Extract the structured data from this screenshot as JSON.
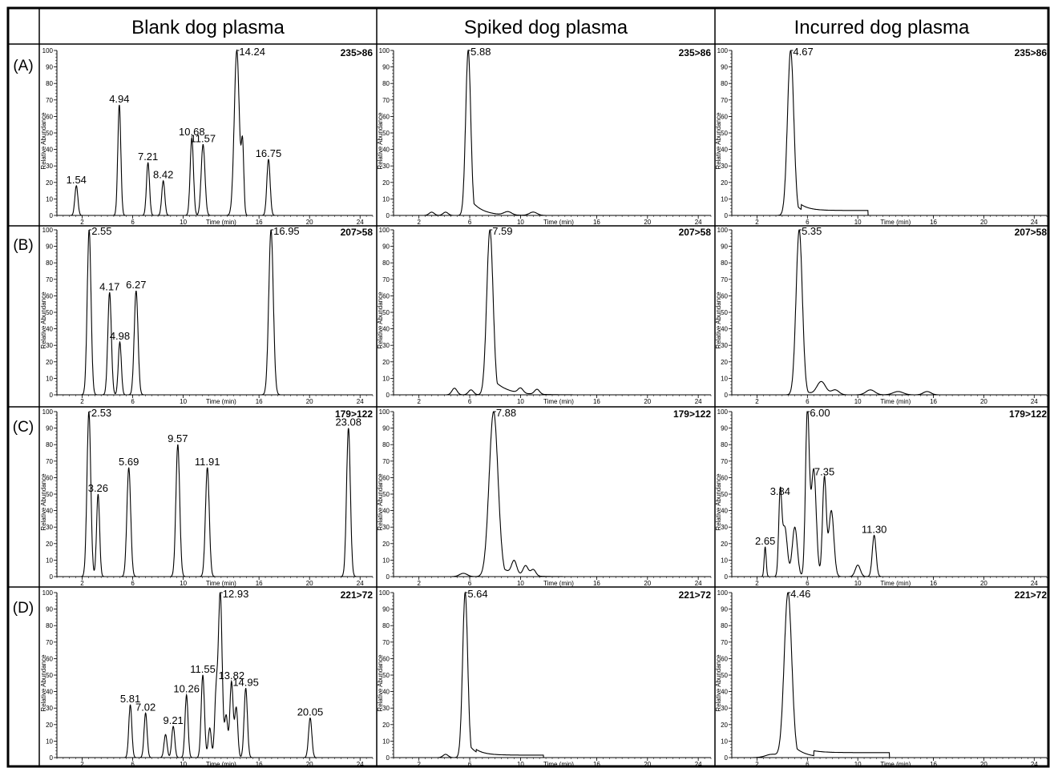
{
  "chart_data": {
    "type": "line",
    "columns": [
      "Blank dog plasma",
      "Spiked dog plasma",
      "Incurred dog plasma"
    ],
    "row_labels": [
      "(A)",
      "(B)",
      "(C)",
      "(D)"
    ],
    "xlabel": "Time (min)",
    "ylabel": "Relative Abundance",
    "xlim": [
      0,
      25
    ],
    "ylim": [
      0,
      100
    ],
    "x_ticks": [
      2,
      6,
      10,
      16,
      20,
      24
    ],
    "y_ticks": [
      0,
      10,
      20,
      30,
      40,
      50,
      60,
      70,
      80,
      90,
      100
    ],
    "panels": [
      {
        "id": "A-blank",
        "row": 0,
        "col": 0,
        "transition": "235>86",
        "peaks": [
          {
            "t": 1.54,
            "h": 18,
            "w": 0.12
          },
          {
            "t": 4.94,
            "h": 67,
            "w": 0.12
          },
          {
            "t": 7.21,
            "h": 32,
            "w": 0.12
          },
          {
            "t": 8.42,
            "h": 21,
            "w": 0.12
          },
          {
            "t": 10.68,
            "h": 47,
            "w": 0.13
          },
          {
            "t": 11.57,
            "h": 43,
            "w": 0.15
          },
          {
            "t": 14.24,
            "h": 100,
            "w": 0.2
          },
          {
            "t": 14.7,
            "h": 40,
            "w": 0.1
          },
          {
            "t": 16.75,
            "h": 34,
            "w": 0.13
          }
        ],
        "labels": [
          {
            "text": "1.54",
            "t": 1.54,
            "h": 18
          },
          {
            "text": "4.94",
            "t": 4.94,
            "h": 67
          },
          {
            "text": "7.21",
            "t": 7.21,
            "h": 32
          },
          {
            "text": "8.42",
            "t": 8.42,
            "h": 21
          },
          {
            "text": "10.68",
            "t": 10.68,
            "h": 47
          },
          {
            "text": "11.57",
            "t": 11.57,
            "h": 43
          },
          {
            "text": "14.24",
            "t": 14.24,
            "h": 100
          },
          {
            "text": "16.75",
            "t": 16.75,
            "h": 34
          }
        ]
      },
      {
        "id": "A-spiked",
        "row": 0,
        "col": 1,
        "transition": "235>86",
        "peaks": [
          {
            "t": 5.88,
            "h": 100,
            "w": 0.2,
            "tail": 2.5
          },
          {
            "t": 3.0,
            "h": 2,
            "w": 0.2
          },
          {
            "t": 4.1,
            "h": 2,
            "w": 0.2
          },
          {
            "t": 9.0,
            "h": 2,
            "w": 0.3
          },
          {
            "t": 11.0,
            "h": 2,
            "w": 0.3
          }
        ],
        "labels": [
          {
            "text": "5.88",
            "t": 5.88,
            "h": 100
          }
        ]
      },
      {
        "id": "A-incurred",
        "row": 0,
        "col": 2,
        "transition": "235>86",
        "peaks": [
          {
            "t": 4.67,
            "h": 100,
            "w": 0.25,
            "tail": 2.0
          }
        ],
        "plateau": {
          "start": 5.5,
          "end": 10.8,
          "h": 3
        },
        "labels": [
          {
            "text": "4.67",
            "t": 4.67,
            "h": 100
          }
        ]
      },
      {
        "id": "B-blank",
        "row": 1,
        "col": 0,
        "transition": "207>58",
        "peaks": [
          {
            "t": 2.55,
            "h": 100,
            "w": 0.15
          },
          {
            "t": 4.17,
            "h": 62,
            "w": 0.14
          },
          {
            "t": 4.98,
            "h": 32,
            "w": 0.12
          },
          {
            "t": 6.27,
            "h": 63,
            "w": 0.15
          },
          {
            "t": 16.95,
            "h": 100,
            "w": 0.18
          }
        ],
        "labels": [
          {
            "text": "2.55",
            "t": 2.55,
            "h": 100
          },
          {
            "text": "4.17",
            "t": 4.17,
            "h": 62
          },
          {
            "text": "4.98",
            "t": 4.98,
            "h": 32
          },
          {
            "text": "6.27",
            "t": 6.27,
            "h": 63
          },
          {
            "text": "16.95",
            "t": 16.95,
            "h": 100
          }
        ]
      },
      {
        "id": "B-spiked",
        "row": 1,
        "col": 1,
        "transition": "207>58",
        "peaks": [
          {
            "t": 7.59,
            "h": 100,
            "w": 0.25,
            "tail": 3.0
          },
          {
            "t": 4.8,
            "h": 4,
            "w": 0.2
          },
          {
            "t": 6.1,
            "h": 3,
            "w": 0.2
          },
          {
            "t": 10.0,
            "h": 3,
            "w": 0.2
          },
          {
            "t": 11.3,
            "h": 3,
            "w": 0.2
          }
        ],
        "labels": [
          {
            "text": "7.59",
            "t": 7.59,
            "h": 100
          }
        ]
      },
      {
        "id": "B-incurred",
        "row": 1,
        "col": 2,
        "transition": "207>58",
        "peaks": [
          {
            "t": 5.35,
            "h": 100,
            "w": 0.25,
            "tail": 1.0
          },
          {
            "t": 7.1,
            "h": 8,
            "w": 0.35
          },
          {
            "t": 8.2,
            "h": 3,
            "w": 0.3
          },
          {
            "t": 11.0,
            "h": 3,
            "w": 0.35
          },
          {
            "t": 13.2,
            "h": 2,
            "w": 0.4
          },
          {
            "t": 15.5,
            "h": 2,
            "w": 0.3
          }
        ],
        "labels": [
          {
            "text": "5.35",
            "t": 5.35,
            "h": 100
          }
        ]
      },
      {
        "id": "C-blank",
        "row": 2,
        "col": 0,
        "transition": "179>122",
        "peaks": [
          {
            "t": 2.53,
            "h": 100,
            "w": 0.15
          },
          {
            "t": 3.26,
            "h": 50,
            "w": 0.12
          },
          {
            "t": 5.69,
            "h": 66,
            "w": 0.15
          },
          {
            "t": 9.57,
            "h": 80,
            "w": 0.15
          },
          {
            "t": 11.91,
            "h": 66,
            "w": 0.15
          },
          {
            "t": 23.08,
            "h": 90,
            "w": 0.15
          }
        ],
        "labels": [
          {
            "text": "2.53",
            "t": 2.53,
            "h": 100
          },
          {
            "text": "3.26",
            "t": 3.26,
            "h": 50
          },
          {
            "text": "5.69",
            "t": 5.69,
            "h": 66
          },
          {
            "text": "9.57",
            "t": 9.57,
            "h": 80
          },
          {
            "text": "11.91",
            "t": 11.91,
            "h": 66
          },
          {
            "text": "23.08",
            "t": 23.08,
            "h": 90
          }
        ]
      },
      {
        "id": "C-spiked",
        "row": 2,
        "col": 1,
        "transition": "179>122",
        "peaks": [
          {
            "t": 7.88,
            "h": 100,
            "w": 0.35,
            "tail": 2.5
          },
          {
            "t": 9.5,
            "h": 8,
            "w": 0.2
          },
          {
            "t": 10.4,
            "h": 6,
            "w": 0.2
          },
          {
            "t": 11.0,
            "h": 4,
            "w": 0.2
          },
          {
            "t": 5.5,
            "h": 2,
            "w": 0.3
          }
        ],
        "labels": [
          {
            "text": "7.88",
            "t": 7.88,
            "h": 100
          }
        ]
      },
      {
        "id": "C-incurred",
        "row": 2,
        "col": 2,
        "transition": "179>122",
        "peaks": [
          {
            "t": 2.65,
            "h": 18,
            "w": 0.08
          },
          {
            "t": 3.84,
            "h": 48,
            "w": 0.12
          },
          {
            "t": 4.2,
            "h": 30,
            "w": 0.2
          },
          {
            "t": 5.0,
            "h": 30,
            "w": 0.2
          },
          {
            "t": 6.0,
            "h": 100,
            "w": 0.15
          },
          {
            "t": 6.5,
            "h": 65,
            "w": 0.2
          },
          {
            "t": 7.35,
            "h": 60,
            "w": 0.15
          },
          {
            "t": 7.9,
            "h": 40,
            "w": 0.2
          },
          {
            "t": 10.0,
            "h": 7,
            "w": 0.2
          },
          {
            "t": 11.3,
            "h": 25,
            "w": 0.15
          }
        ],
        "labels": [
          {
            "text": "2.65",
            "t": 2.65,
            "h": 18
          },
          {
            "text": "3.84",
            "t": 3.84,
            "h": 48
          },
          {
            "text": "6.00",
            "t": 6.0,
            "h": 100
          },
          {
            "text": "7.35",
            "t": 7.35,
            "h": 60
          },
          {
            "text": "11.30",
            "t": 11.3,
            "h": 25
          }
        ]
      },
      {
        "id": "D-blank",
        "row": 3,
        "col": 0,
        "transition": "221>72",
        "peaks": [
          {
            "t": 5.81,
            "h": 32,
            "w": 0.12
          },
          {
            "t": 7.02,
            "h": 27,
            "w": 0.12
          },
          {
            "t": 8.6,
            "h": 14,
            "w": 0.12
          },
          {
            "t": 9.21,
            "h": 19,
            "w": 0.12
          },
          {
            "t": 10.26,
            "h": 38,
            "w": 0.12
          },
          {
            "t": 11.55,
            "h": 50,
            "w": 0.13
          },
          {
            "t": 12.1,
            "h": 18,
            "w": 0.12
          },
          {
            "t": 12.6,
            "h": 36,
            "w": 0.12
          },
          {
            "t": 12.93,
            "h": 100,
            "w": 0.15
          },
          {
            "t": 13.4,
            "h": 25,
            "w": 0.12
          },
          {
            "t": 13.82,
            "h": 46,
            "w": 0.13
          },
          {
            "t": 14.2,
            "h": 30,
            "w": 0.12
          },
          {
            "t": 14.95,
            "h": 42,
            "w": 0.13
          },
          {
            "t": 20.05,
            "h": 24,
            "w": 0.13
          }
        ],
        "labels": [
          {
            "text": "5.81",
            "t": 5.81,
            "h": 32
          },
          {
            "text": "7.02",
            "t": 7.02,
            "h": 27
          },
          {
            "text": "9.21",
            "t": 9.21,
            "h": 19
          },
          {
            "text": "10.26",
            "t": 10.26,
            "h": 38
          },
          {
            "text": "11.55",
            "t": 11.55,
            "h": 50
          },
          {
            "text": "12.93",
            "t": 12.93,
            "h": 100
          },
          {
            "text": "13.82",
            "t": 13.82,
            "h": 46
          },
          {
            "text": "14.95",
            "t": 14.95,
            "h": 42
          },
          {
            "text": "20.05",
            "t": 20.05,
            "h": 24
          }
        ]
      },
      {
        "id": "D-spiked",
        "row": 3,
        "col": 1,
        "transition": "221>72",
        "peaks": [
          {
            "t": 5.64,
            "h": 100,
            "w": 0.2,
            "tail": 2.0
          },
          {
            "t": 4.1,
            "h": 2,
            "w": 0.2
          }
        ],
        "plateau": {
          "start": 6.5,
          "end": 11.8,
          "h": 1.5
        },
        "labels": [
          {
            "text": "5.64",
            "t": 5.64,
            "h": 100
          }
        ]
      },
      {
        "id": "D-incurred",
        "row": 3,
        "col": 2,
        "transition": "221>72",
        "peaks": [
          {
            "t": 4.46,
            "h": 100,
            "w": 0.3,
            "tail": 2.5
          },
          {
            "t": 3.2,
            "h": 2,
            "w": 0.5
          }
        ],
        "plateau": {
          "start": 6.5,
          "end": 12.5,
          "h": 3
        },
        "labels": [
          {
            "text": "4.46",
            "t": 4.46,
            "h": 100
          }
        ]
      }
    ]
  }
}
